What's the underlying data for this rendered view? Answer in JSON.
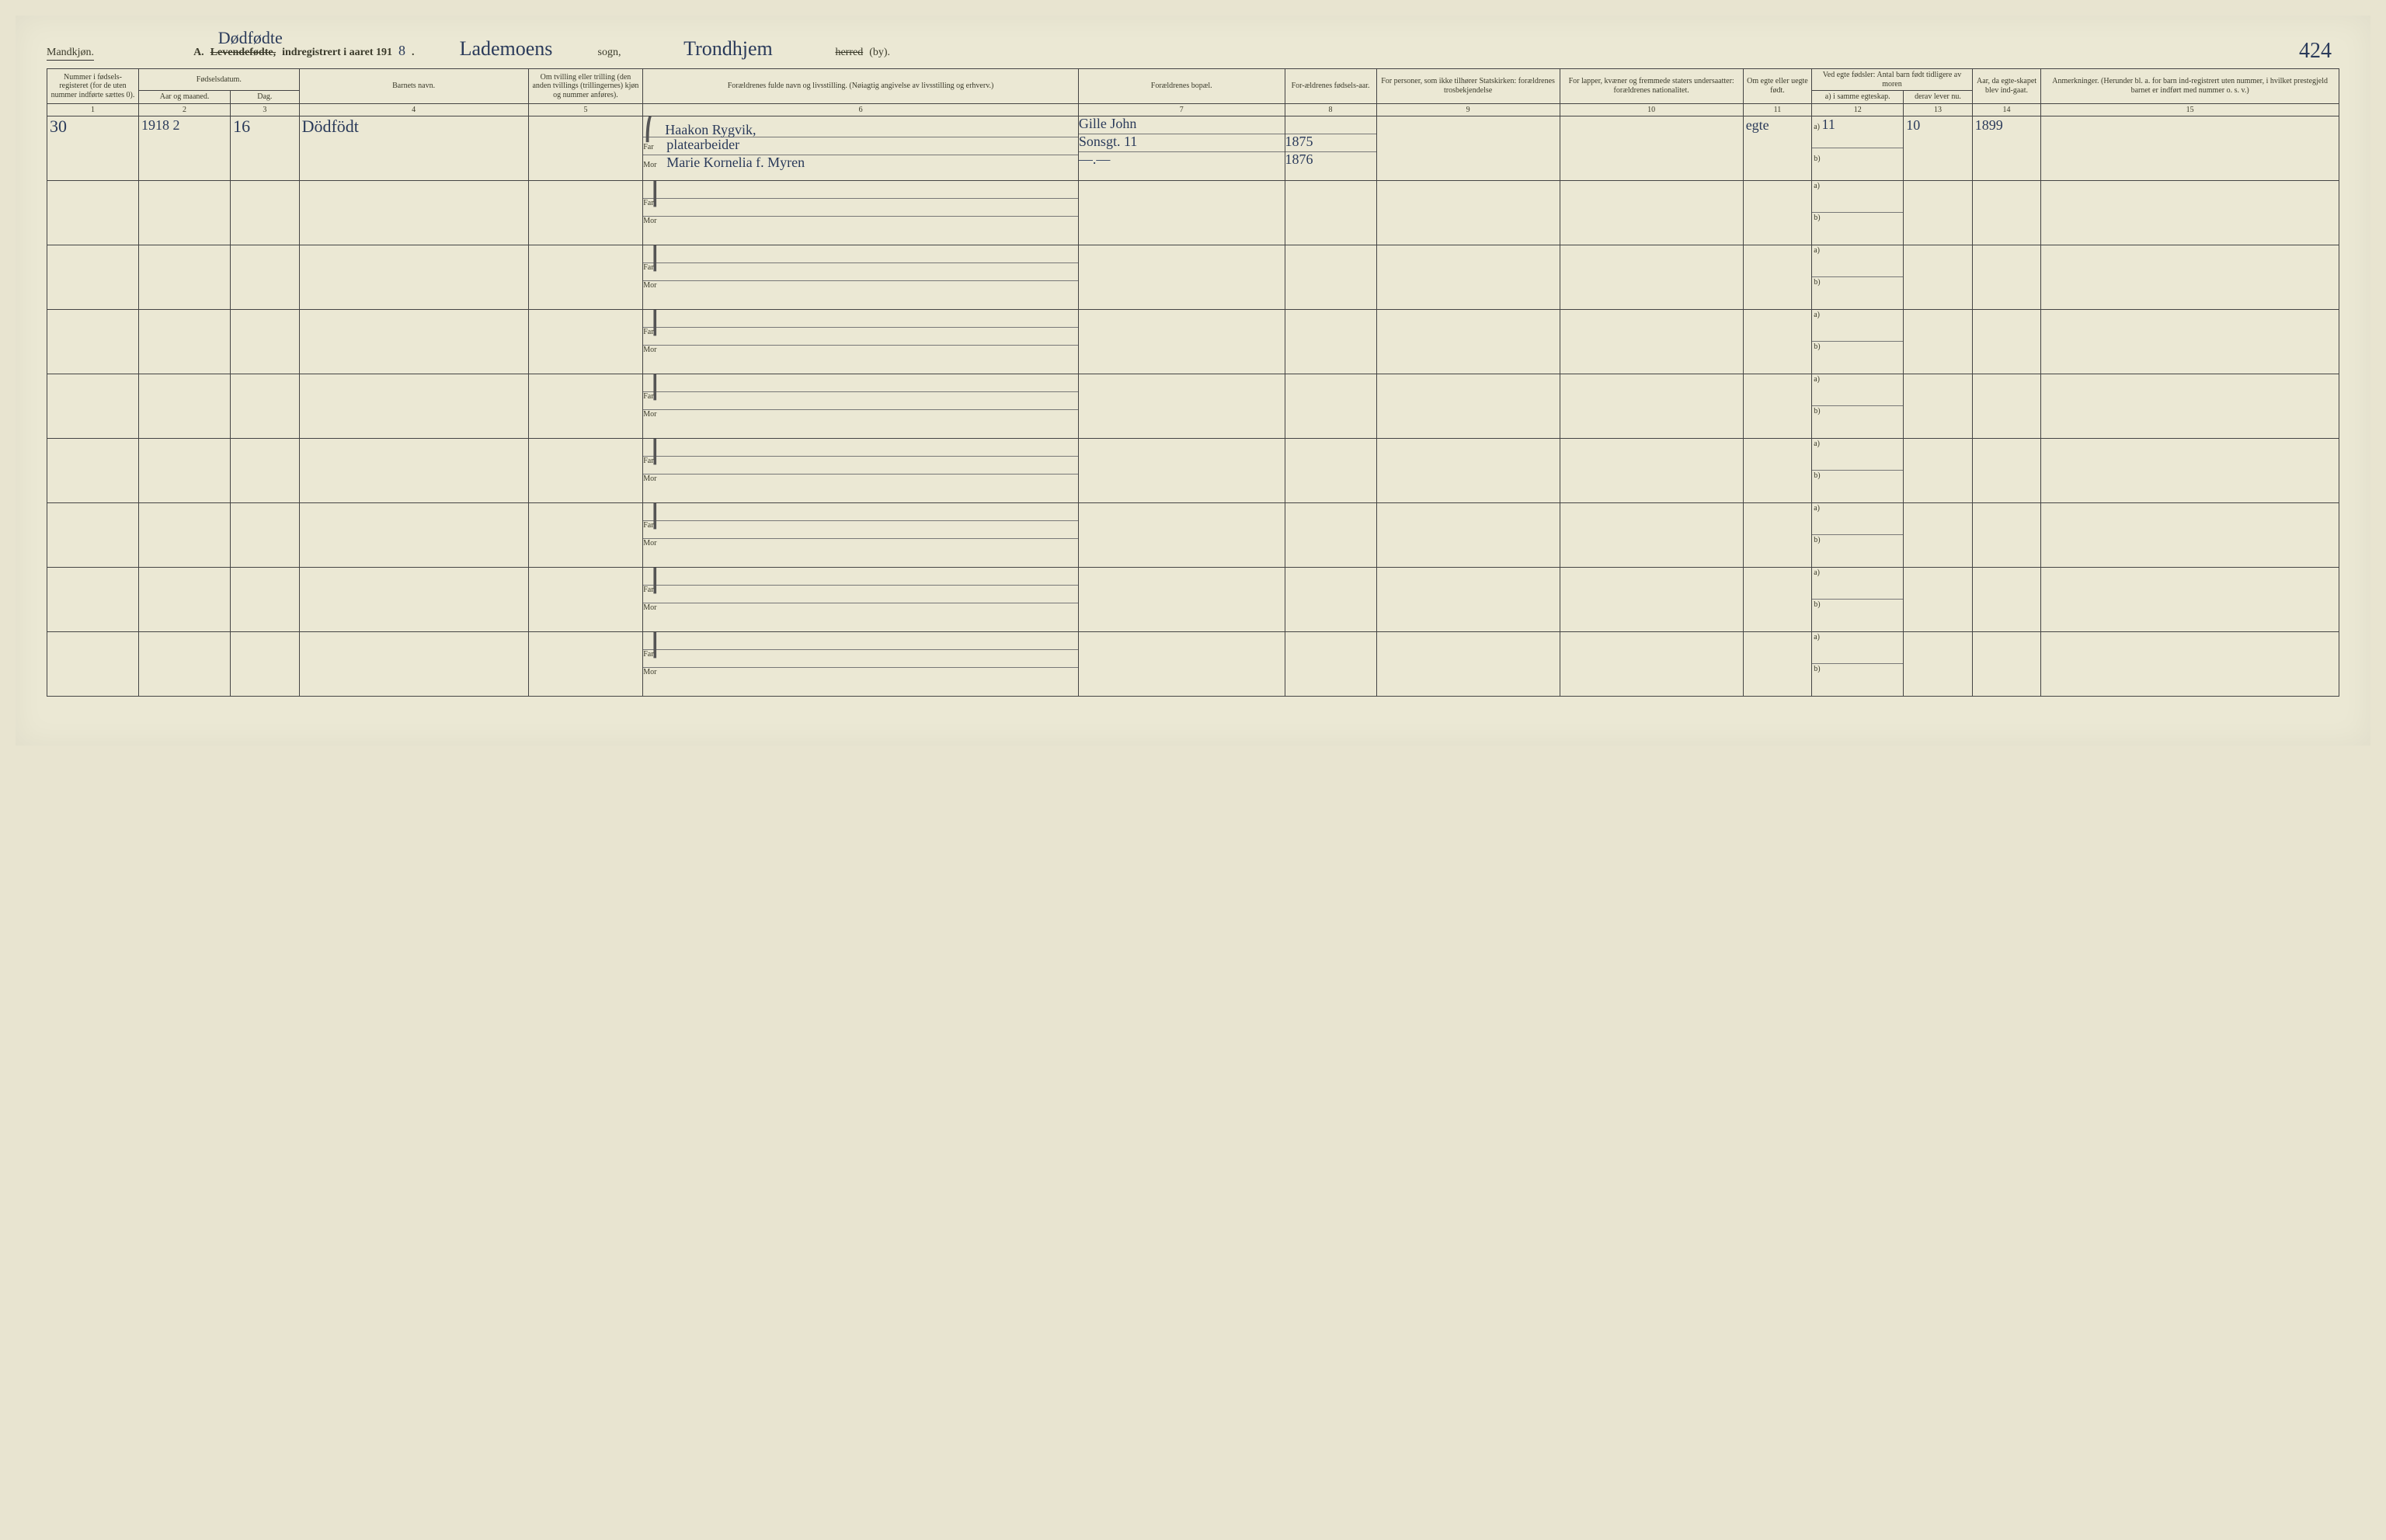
{
  "page_number": "424",
  "gender_label": "Mandkjøn.",
  "form_prefix": "A.",
  "form_title_handwritten_above": "Dødfødte",
  "form_title_struck": "Levendefødte,",
  "form_title_rest": "indregistrert i aaret 191",
  "year_suffix_handwritten": "8",
  "parish_handwritten": "Lademoens",
  "label_sogn": "sogn,",
  "district_handwritten": "Trondhjem",
  "label_herred_struck": "herred",
  "label_by": "(by).",
  "columns": {
    "c1": "Nummer i fødsels-registeret (for de uten nummer indførte sættes 0).",
    "c2_group": "Fødselsdatum.",
    "c2a": "Aar og maaned.",
    "c2b": "Dag.",
    "c4": "Barnets navn.",
    "c5": "Om tvilling eller trilling (den anden tvillings (trillingernes) kjøn og nummer anføres).",
    "c6": "Forældrenes fulde navn og livsstilling. (Nøiagtig angivelse av livsstilling og erhverv.)",
    "c7": "Forældrenes bopæl.",
    "c8": "For-ældrenes fødsels-aar.",
    "c9": "For personer, som ikke tilhører Statskirken: forældrenes trosbekjendelse",
    "c10": "For lapper, kvæner og fremmede staters undersaatter: forældrenes nationalitet.",
    "c11": "Om egte eller uegte født.",
    "c12_top": "Ved egte fødsler: Antal barn født tidligere av moren",
    "c12a": "a) i samme egteskap.",
    "c12b": "b) i tidligere egteskap.",
    "c13_top": "derav lever nu.",
    "c13a": "derav lever nu.",
    "c14": "Aar, da egte-skapet blev ind-gaat.",
    "c15": "Anmerkninger. (Herunder bl. a. for barn ind-registrert uten nummer, i hvilket prestegjeld barnet er indført med nummer o. s. v.)"
  },
  "colnumbers": [
    "1",
    "2",
    "3",
    "4",
    "5",
    "6",
    "7",
    "8",
    "9",
    "10",
    "11",
    "12",
    "13",
    "14",
    "15"
  ],
  "far_label": "Far",
  "mor_label": "Mor",
  "ab_a": "a)",
  "ab_b": "b)",
  "entry": {
    "number": "30",
    "year_month": "1918 2",
    "day": "16",
    "child_name": "Dödfödt",
    "twin": "",
    "parents_top": "Haakon Rygvik,",
    "far": "platearbeider",
    "mor": "Marie Kornelia f. Myren",
    "residence_top": "Gille John",
    "residence": "Sonsgt. 11",
    "residence_mor": "—.—",
    "far_birth": "1875",
    "mor_birth": "1876",
    "religion": "",
    "nationality": "",
    "legitimate": "egte",
    "c12a": "11",
    "c12b": "",
    "c13": "10",
    "c14": "1899",
    "remarks": ""
  },
  "blank_rows": 8,
  "colors": {
    "paper": "#ebe8d4",
    "ink_print": "#3a3a2a",
    "ink_hand": "#2a3a5a",
    "rule": "#444444"
  }
}
